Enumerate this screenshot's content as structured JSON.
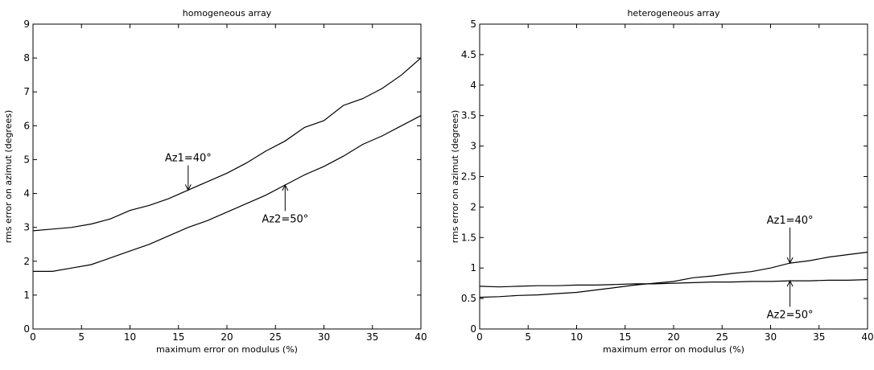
{
  "chart_data": [
    {
      "type": "line",
      "title": "homogeneous array",
      "xlabel": "maximum error on modulus (%)",
      "ylabel": "rms error on azimut (degrees)",
      "xlim": [
        0,
        40
      ],
      "ylim": [
        0,
        9
      ],
      "xticks": [
        "0",
        "5",
        "10",
        "15",
        "20",
        "25",
        "30",
        "35",
        "40"
      ],
      "yticks": [
        "0",
        "1",
        "2",
        "3",
        "4",
        "5",
        "6",
        "7",
        "8",
        "9"
      ],
      "grid": false,
      "series": [
        {
          "name": "Az1=40°",
          "x": [
            0,
            2,
            4,
            6,
            8,
            10,
            12,
            14,
            16,
            18,
            20,
            22,
            24,
            26,
            28,
            30,
            32,
            34,
            36,
            38,
            40
          ],
          "y": [
            2.9,
            2.95,
            3.0,
            3.1,
            3.25,
            3.5,
            3.65,
            3.85,
            4.1,
            4.35,
            4.6,
            4.9,
            5.25,
            5.55,
            5.95,
            6.15,
            6.6,
            6.8,
            7.1,
            7.5,
            8.0
          ]
        },
        {
          "name": "Az2=50°",
          "x": [
            0,
            2,
            4,
            6,
            8,
            10,
            12,
            14,
            16,
            18,
            20,
            22,
            24,
            26,
            28,
            30,
            32,
            34,
            36,
            38,
            40
          ],
          "y": [
            1.7,
            1.7,
            1.8,
            1.9,
            2.1,
            2.3,
            2.5,
            2.75,
            3.0,
            3.2,
            3.45,
            3.7,
            3.95,
            4.25,
            4.55,
            4.8,
            5.1,
            5.45,
            5.7,
            6.0,
            6.3
          ]
        }
      ],
      "annotations": [
        {
          "text": "Az1=40°",
          "x": 16,
          "y": 4.95,
          "arrow_x": 16,
          "arrow_y": 4.1
        },
        {
          "text": "Az2=50°",
          "x": 26,
          "y": 3.15,
          "arrow_x": 26,
          "arrow_y": 4.25
        }
      ]
    },
    {
      "type": "line",
      "title": "heterogeneous array",
      "xlabel": "maximum error on modulus (%)",
      "ylabel": "rms error on azimut (degrees)",
      "xlim": [
        0,
        40
      ],
      "ylim": [
        0,
        5
      ],
      "xticks": [
        "0",
        "5",
        "10",
        "15",
        "20",
        "25",
        "30",
        "35",
        "40"
      ],
      "yticks": [
        "0",
        "0.5",
        "1",
        "1.5",
        "2",
        "2.5",
        "3",
        "3.5",
        "4",
        "4.5",
        "5"
      ],
      "grid": false,
      "series": [
        {
          "name": "Az1=40°",
          "x": [
            0,
            2,
            4,
            6,
            8,
            10,
            12,
            14,
            16,
            18,
            20,
            22,
            24,
            26,
            28,
            30,
            32,
            34,
            36,
            38,
            40
          ],
          "y": [
            0.52,
            0.53,
            0.55,
            0.56,
            0.58,
            0.6,
            0.64,
            0.68,
            0.72,
            0.75,
            0.78,
            0.84,
            0.87,
            0.91,
            0.94,
            1.0,
            1.08,
            1.12,
            1.18,
            1.22,
            1.26
          ]
        },
        {
          "name": "Az2=50°",
          "x": [
            0,
            2,
            4,
            6,
            8,
            10,
            12,
            14,
            16,
            18,
            20,
            22,
            24,
            26,
            28,
            30,
            32,
            34,
            36,
            38,
            40
          ],
          "y": [
            0.7,
            0.69,
            0.7,
            0.71,
            0.71,
            0.72,
            0.72,
            0.73,
            0.74,
            0.74,
            0.75,
            0.76,
            0.77,
            0.77,
            0.78,
            0.78,
            0.79,
            0.79,
            0.8,
            0.8,
            0.81
          ]
        }
      ],
      "annotations": [
        {
          "text": "Az1=40°",
          "x": 32,
          "y": 1.73,
          "arrow_x": 32,
          "arrow_y": 1.08
        },
        {
          "text": "Az2=50°",
          "x": 32,
          "y": 0.18,
          "arrow_x": 32,
          "arrow_y": 0.79
        }
      ]
    }
  ]
}
